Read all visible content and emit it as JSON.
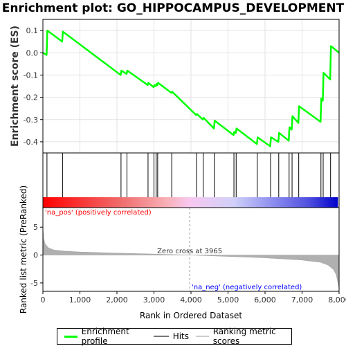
{
  "title": "Enrichment plot: GO_HIPPOCAMPUS_DEVELOPMENT",
  "legend": {
    "items": [
      {
        "label": "Enrichment profile",
        "color": "#00ff00"
      },
      {
        "label": "Hits",
        "color": "#777777"
      },
      {
        "label": "Ranking metric scores",
        "color": "#cccccc"
      }
    ]
  },
  "colors": {
    "profile": "#00ff00",
    "hits": "#000000",
    "metric": "#b0b0b0",
    "pos": "#ff0000",
    "neg": "#0000ff"
  },
  "chart_data": {
    "type": "line",
    "xlabel": "Rank in Ordered Dataset",
    "xlim": [
      0,
      8000
    ],
    "x_ticks": [
      0,
      1000,
      2000,
      3000,
      4000,
      5000,
      6000,
      7000,
      8000
    ],
    "x_tick_labels": [
      "0",
      "1,000",
      "2,000",
      "3,000",
      "4,000",
      "5,000",
      "6,000",
      "7,000",
      "8,000"
    ],
    "es_panel": {
      "ylabel": "Enrichment score (ES)",
      "ylim": [
        -0.45,
        0.15
      ],
      "y_ticks": [
        0.1,
        0.0,
        -0.1,
        -0.2,
        -0.3,
        -0.4
      ],
      "y_tick_labels": [
        "0.1",
        "0.0",
        "-0.1",
        "-0.2",
        "-0.3",
        "-0.4"
      ],
      "series": [
        {
          "name": "Enrichment profile",
          "x": [
            0,
            100,
            120,
            520,
            540,
            2100,
            2120,
            2260,
            2280,
            2830,
            2850,
            2990,
            3010,
            3050,
            3070,
            3090,
            3110,
            3470,
            3490,
            4140,
            4160,
            4320,
            4340,
            4620,
            4640,
            5150,
            5170,
            5210,
            5230,
            5780,
            5800,
            6140,
            6160,
            6360,
            6380,
            6640,
            6660,
            6720,
            6740,
            6900,
            6920,
            7500,
            7520,
            7560,
            7580,
            7760,
            7780,
            8000
          ],
          "values": [
            0.0,
            -0.01,
            0.1,
            0.05,
            0.095,
            -0.1,
            -0.08,
            -0.095,
            -0.08,
            -0.145,
            -0.135,
            -0.155,
            -0.145,
            -0.15,
            -0.14,
            -0.145,
            -0.135,
            -0.18,
            -0.175,
            -0.28,
            -0.275,
            -0.3,
            -0.292,
            -0.34,
            -0.305,
            -0.37,
            -0.355,
            -0.36,
            -0.34,
            -0.41,
            -0.38,
            -0.42,
            -0.38,
            -0.4,
            -0.36,
            -0.395,
            -0.335,
            -0.345,
            -0.285,
            -0.315,
            -0.24,
            -0.31,
            -0.205,
            -0.215,
            -0.09,
            -0.12,
            0.03,
            0.0
          ]
        }
      ]
    },
    "hits": [
      110,
      530,
      2110,
      2270,
      2840,
      3000,
      3060,
      3100,
      3480,
      4150,
      4330,
      4630,
      5160,
      5220,
      5790,
      6150,
      6370,
      6650,
      6730,
      6910,
      7510,
      7570,
      7770
    ],
    "metric_panel": {
      "ylabel": "Ranked list metric (PreRanked)",
      "ylim": [
        -6.5,
        8.5
      ],
      "y_ticks": [
        5,
        0,
        -5
      ],
      "y_tick_labels": [
        "5",
        "0",
        "-5"
      ],
      "zero_cross_label": "Zero cross at 3965",
      "zero_cross": 3965,
      "pos_label": "'na_pos' (positively correlated)",
      "neg_label": "'na_neg' (negatively correlated)",
      "profile": {
        "x": [
          0,
          20,
          60,
          150,
          300,
          600,
          1000,
          2000,
          3000,
          3965,
          5000,
          6000,
          7000,
          7500,
          7700,
          7850,
          7920,
          7970,
          8000
        ],
        "values": [
          5.0,
          3.0,
          2.0,
          1.3,
          0.9,
          0.7,
          0.55,
          0.35,
          0.18,
          0.0,
          -0.25,
          -0.5,
          -0.9,
          -1.3,
          -1.8,
          -2.6,
          -3.5,
          -5.0,
          -6.0
        ]
      }
    }
  }
}
